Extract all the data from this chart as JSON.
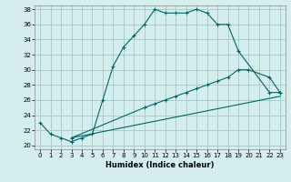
{
  "xlabel": "Humidex (Indice chaleur)",
  "ylabel": "",
  "bg_color": "#d4eeee",
  "grid_color": "#aacccc",
  "line_color": "#006666",
  "xlim": [
    -0.5,
    23.5
  ],
  "ylim": [
    19.5,
    38.5
  ],
  "xticks": [
    0,
    1,
    2,
    3,
    4,
    5,
    6,
    7,
    8,
    9,
    10,
    11,
    12,
    13,
    14,
    15,
    16,
    17,
    18,
    19,
    20,
    21,
    22,
    23
  ],
  "yticks": [
    20,
    22,
    24,
    26,
    28,
    30,
    32,
    34,
    36,
    38
  ],
  "curve1_x": [
    0,
    1,
    2,
    3,
    4,
    5,
    6,
    7,
    8,
    9,
    10,
    11,
    12,
    13,
    14,
    15,
    16,
    17,
    18,
    19,
    22,
    23
  ],
  "curve1_y": [
    23,
    21.5,
    21,
    20.5,
    21,
    21.5,
    26,
    30.5,
    33,
    34.5,
    36,
    38,
    37.5,
    37.5,
    37.5,
    38,
    37.5,
    36,
    36,
    32.5,
    27,
    27
  ],
  "curve2_x": [
    3,
    10,
    11,
    12,
    13,
    14,
    15,
    16,
    17,
    18,
    19,
    20,
    22,
    23
  ],
  "curve2_y": [
    21,
    25,
    25.5,
    26,
    26.5,
    27,
    27.5,
    28,
    28.5,
    29,
    30,
    30,
    29,
    27
  ],
  "curve3_x": [
    3,
    23
  ],
  "curve3_y": [
    21,
    26.5
  ]
}
